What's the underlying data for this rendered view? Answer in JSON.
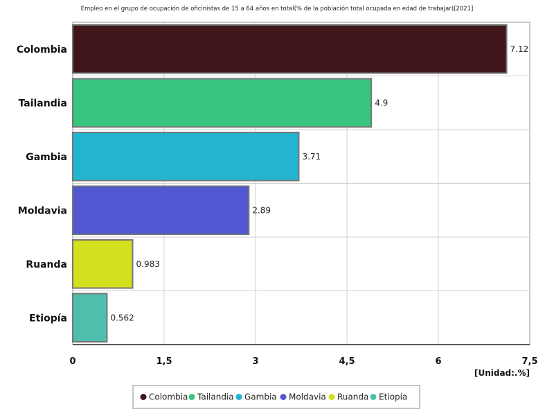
{
  "chart_data": {
    "type": "bar",
    "orientation": "horizontal",
    "title": "Empleo en el grupo de ocupación de oficinistas de 15 a 64 años en total(% de la población total ocupada en edad de trabajar)[2021]",
    "unit_label": "[Unidad:.%]",
    "categories": [
      "Colombia",
      "Tailandia",
      "Gambia",
      "Moldavia",
      "Ruanda",
      "Etiopía"
    ],
    "values": [
      7.12,
      4.9,
      3.71,
      2.89,
      0.983,
      0.562
    ],
    "value_labels": [
      "7.12",
      "4.9",
      "3.71",
      "2.89",
      "0.983",
      "0.562"
    ],
    "colors": [
      "#40161b",
      "#37c580",
      "#23b4d2",
      "#5257d2",
      "#d2e01d",
      "#4fbfad"
    ],
    "xlim": [
      0,
      7.5
    ],
    "x_ticks": [
      0,
      1.5,
      3,
      4.5,
      6,
      7.5
    ],
    "x_tick_labels": [
      "0",
      "1,5",
      "3",
      "4,5",
      "6",
      "7,5"
    ],
    "grid": true,
    "legend": {
      "position": "bottom-center",
      "entries": [
        "Colombia",
        "Tailandia",
        "Gambia",
        "Moldavia",
        "Ruanda",
        "Etiopía"
      ]
    }
  }
}
